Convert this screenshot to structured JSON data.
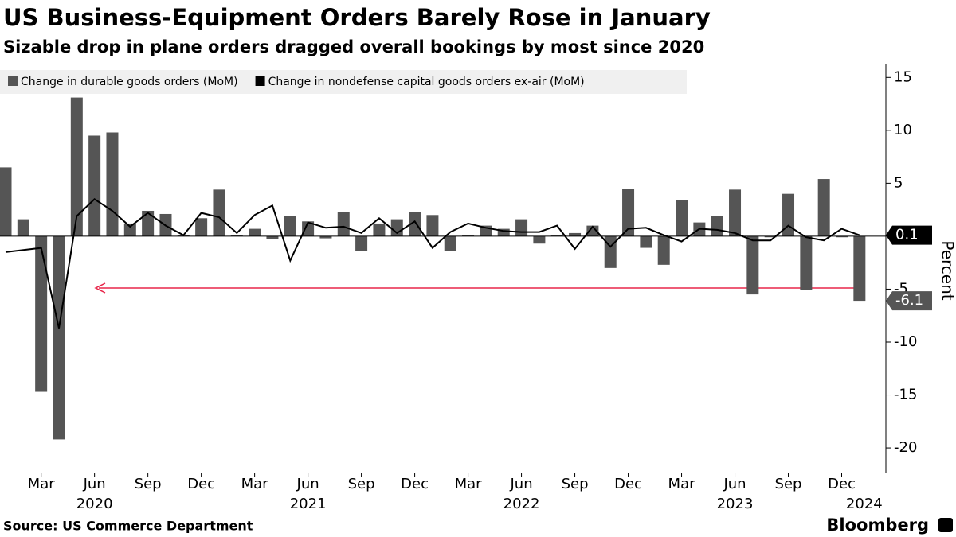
{
  "chart_data": {
    "type": "combo",
    "title": "US Business-Equipment Orders Barely Rose in January",
    "subtitle": "Sizable drop in plane orders dragged overall bookings by most since 2020",
    "y_label": "Percent",
    "source": "Source: US Commerce Department",
    "brand": "Bloomberg",
    "categories": [
      null,
      null,
      "Mar",
      null,
      null,
      "Jun",
      null,
      null,
      "Sep",
      null,
      null,
      "Dec",
      null,
      null,
      "Mar",
      null,
      null,
      "Jun",
      null,
      null,
      "Sep",
      null,
      null,
      "Dec",
      null,
      null,
      "Mar",
      null,
      null,
      "Jun",
      null,
      null,
      "Sep",
      null,
      null,
      "Dec",
      null,
      null,
      "Mar",
      null,
      null,
      "Jun",
      null,
      null,
      "Sep",
      null,
      null,
      "Dec",
      null
    ],
    "years": [
      null,
      null,
      null,
      null,
      null,
      "2020",
      null,
      null,
      null,
      null,
      null,
      null,
      null,
      null,
      null,
      null,
      null,
      "2021",
      null,
      null,
      null,
      null,
      null,
      null,
      null,
      null,
      null,
      null,
      null,
      "2022",
      null,
      null,
      null,
      null,
      null,
      null,
      null,
      null,
      null,
      null,
      null,
      "2023",
      null,
      null,
      null,
      null,
      null,
      null,
      "2024"
    ],
    "series": [
      {
        "name": "Change in durable goods orders (MoM)",
        "type": "bar",
        "color": "#555555",
        "values": [
          6.5,
          1.6,
          -14.7,
          -19.2,
          13.1,
          9.5,
          9.8,
          1.2,
          2.4,
          2.1,
          0.1,
          1.7,
          4.4,
          0.1,
          0.7,
          -0.3,
          1.9,
          1.4,
          -0.2,
          2.3,
          -1.4,
          1.2,
          1.6,
          2.3,
          2.0,
          -1.4,
          0.1,
          1.0,
          0.7,
          1.6,
          -0.7,
          0.1,
          0.3,
          1.0,
          -3.0,
          4.5,
          -1.1,
          -2.7,
          3.4,
          1.3,
          1.9,
          4.4,
          -5.5,
          -0.1,
          4.0,
          -5.1,
          5.4,
          -0.1,
          -6.1
        ]
      },
      {
        "name": "Change in nondefense capital goods orders ex-air (MoM)",
        "type": "line",
        "color": "#000000",
        "values": [
          -1.5,
          -1.3,
          -1.1,
          -8.7,
          1.9,
          3.5,
          2.4,
          0.9,
          2.2,
          1.0,
          0.1,
          2.2,
          1.8,
          0.3,
          2.0,
          2.9,
          -2.3,
          1.3,
          0.8,
          0.9,
          0.3,
          1.7,
          0.3,
          1.4,
          -1.1,
          0.4,
          1.2,
          0.8,
          0.5,
          0.4,
          0.4,
          1.0,
          -1.2,
          0.9,
          -1.0,
          0.7,
          0.8,
          0.1,
          -0.5,
          0.7,
          0.6,
          0.3,
          -0.4,
          -0.4,
          1.0,
          -0.1,
          -0.4,
          0.7,
          0.1
        ]
      }
    ],
    "ylim": [
      -22.4,
      16.3
    ],
    "yticks": [
      -20,
      -15,
      -10,
      -5,
      0,
      5,
      10,
      15
    ]
  }
}
